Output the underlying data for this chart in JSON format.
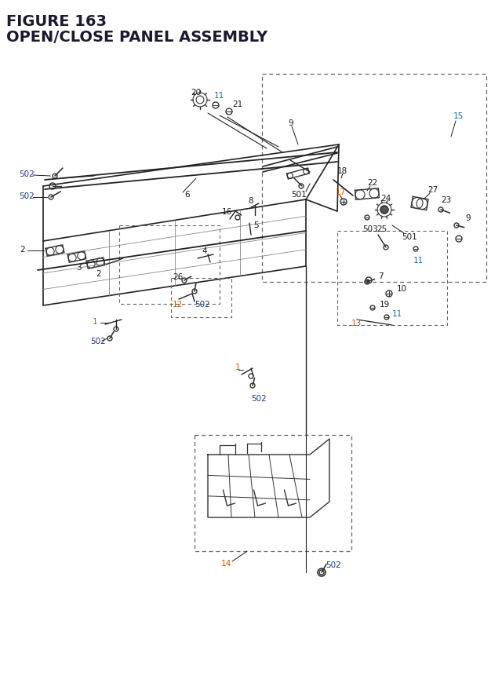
{
  "title_line1": "FIGURE 163",
  "title_line2": "OPEN/CLOSE PANEL ASSEMBLY",
  "title_color": "#1a1a2e",
  "title_fontsize": 14,
  "bg_color": "#ffffff",
  "lbl_black": "#1a1a1a",
  "lbl_orange": "#cc5500",
  "lbl_blue": "#1a3a7a",
  "lbl_cyan": "#1a6aaa",
  "dash_color": "#666666",
  "line_color": "#222222",
  "part_color": "#333333",
  "lbl_fs": 7.5,
  "lbl_fs_title": 8.5
}
